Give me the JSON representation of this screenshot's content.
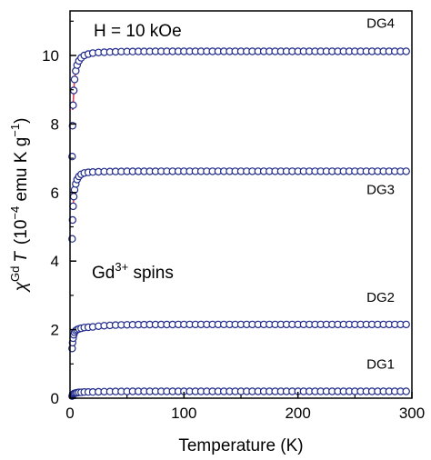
{
  "chart_data": {
    "type": "scatter",
    "xlabel": "Temperature (K)",
    "ylabel": {
      "chi": "χ",
      "gd_sup": "Gd",
      "T": "T",
      "units_open": "(10",
      "units_exp": "−4",
      "units_mid": " emu K g",
      "units_exp2": "−1",
      "units_close": ")"
    },
    "xlim": [
      0,
      300
    ],
    "ylim": [
      0,
      11.3
    ],
    "x_ticks": [
      0,
      100,
      200,
      300
    ],
    "y_ticks": [
      0,
      2,
      4,
      6,
      8,
      10
    ],
    "grid": false,
    "annotations": {
      "field": "H = 10 kOe",
      "spins_base": "Gd",
      "spins_sup": "3+",
      "spins_rest": " spins"
    },
    "marker_color": "#1f2a8a",
    "fit_color": "#e0405a",
    "series": [
      {
        "name": "DG4",
        "saturation": 10.12,
        "low_T_value": 8.7,
        "points": [
          [
            1.8,
            7.05
          ],
          [
            2.2,
            7.95
          ],
          [
            2.7,
            8.55
          ],
          [
            3.3,
            8.98
          ],
          [
            4.0,
            9.3
          ],
          [
            5.0,
            9.55
          ],
          [
            6.2,
            9.72
          ],
          [
            7.8,
            9.84
          ],
          [
            9.8,
            9.93
          ],
          [
            12.5,
            10.0
          ],
          [
            16,
            10.04
          ],
          [
            20,
            10.07
          ]
        ],
        "has_fit": true
      },
      {
        "name": "DG3",
        "saturation": 6.62,
        "low_T_value": 5.8,
        "points": [
          [
            1.8,
            4.65
          ],
          [
            2.2,
            5.2
          ],
          [
            2.7,
            5.6
          ],
          [
            3.3,
            5.88
          ],
          [
            4.0,
            6.08
          ],
          [
            5.0,
            6.25
          ],
          [
            6.2,
            6.38
          ],
          [
            7.8,
            6.47
          ],
          [
            9.8,
            6.53
          ],
          [
            12.5,
            6.57
          ],
          [
            16,
            6.59
          ],
          [
            20,
            6.6
          ]
        ],
        "has_fit": true
      },
      {
        "name": "DG2",
        "saturation": 2.15,
        "low_T_value": 1.9,
        "points": [
          [
            1.8,
            1.45
          ],
          [
            2.2,
            1.62
          ],
          [
            2.7,
            1.75
          ],
          [
            3.3,
            1.85
          ],
          [
            4.0,
            1.92
          ],
          [
            5.0,
            1.97
          ],
          [
            6.2,
            2.0
          ],
          [
            7.8,
            2.02
          ],
          [
            9.8,
            2.04
          ],
          [
            12.5,
            2.06
          ],
          [
            16,
            2.07
          ],
          [
            20,
            2.08
          ]
        ],
        "has_fit": false
      },
      {
        "name": "DG1",
        "saturation": 0.2,
        "low_T_value": 0.12,
        "points": [
          [
            1.8,
            0.06
          ],
          [
            2.2,
            0.09
          ],
          [
            2.7,
            0.11
          ],
          [
            3.3,
            0.13
          ],
          [
            4.0,
            0.14
          ],
          [
            5.0,
            0.15
          ],
          [
            6.2,
            0.16
          ],
          [
            7.8,
            0.17
          ],
          [
            9.8,
            0.17
          ],
          [
            12.5,
            0.18
          ],
          [
            16,
            0.18
          ],
          [
            20,
            0.18
          ]
        ],
        "has_fit": false
      }
    ]
  }
}
